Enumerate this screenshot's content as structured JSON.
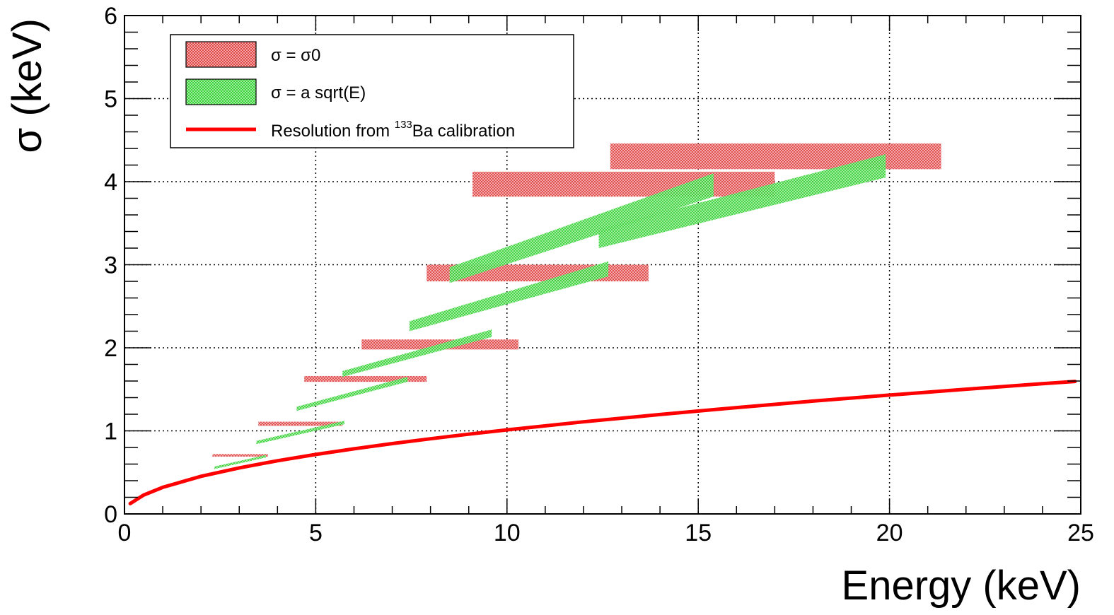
{
  "chart_data": {
    "type": "scatter",
    "xlabel": "Energy (keV)",
    "ylabel": "σ (keV)",
    "xlim": [
      0,
      25
    ],
    "ylim": [
      0,
      6
    ],
    "xticks": [
      "0",
      "5",
      "10",
      "15",
      "20",
      "25"
    ],
    "yticks": [
      "0",
      "1",
      "2",
      "3",
      "4",
      "5",
      "6"
    ],
    "grid": true,
    "legend_position": "top-left",
    "legend": [
      {
        "label": "σ = σ0",
        "color": "#e04848",
        "style": "box"
      },
      {
        "label": "σ = a sqrt(E)",
        "color": "#3ed43e",
        "style": "box"
      },
      {
        "label_prefix": "Resolution from ",
        "label_sup": "133",
        "label_suffix": "Ba calibration",
        "color": "#ff0000",
        "style": "line"
      }
    ],
    "series": [
      {
        "name": "σ = σ0",
        "color": "#e04848",
        "bands": [
          {
            "x1": 2.3,
            "x2": 3.75,
            "y1": 0.69,
            "y2": 0.72
          },
          {
            "x1": 3.5,
            "x2": 5.7,
            "y1": 1.06,
            "y2": 1.11
          },
          {
            "x1": 4.7,
            "x2": 7.9,
            "y1": 1.59,
            "y2": 1.66
          },
          {
            "x1": 6.2,
            "x2": 10.3,
            "y1": 1.98,
            "y2": 2.1
          },
          {
            "x1": 7.9,
            "x2": 13.7,
            "y1": 2.8,
            "y2": 3.0
          },
          {
            "x1": 9.1,
            "x2": 17.0,
            "y1": 3.82,
            "y2": 4.12
          },
          {
            "x1": 12.7,
            "x2": 21.35,
            "y1": 4.15,
            "y2": 4.46
          }
        ]
      },
      {
        "name": "σ = a sqrt(E)",
        "color": "#3ed43e",
        "bands": [
          {
            "x1": 2.35,
            "x2": 3.7,
            "y1_low": 0.54,
            "y1_high": 0.57,
            "y2_low": 0.68,
            "y2_high": 0.71
          },
          {
            "x1": 3.45,
            "x2": 5.75,
            "y1_low": 0.84,
            "y1_high": 0.88,
            "y2_low": 1.08,
            "y2_high": 1.12
          },
          {
            "x1": 4.5,
            "x2": 7.4,
            "y1_low": 1.24,
            "y1_high": 1.29,
            "y2_low": 1.59,
            "y2_high": 1.65
          },
          {
            "x1": 5.7,
            "x2": 9.6,
            "y1_low": 1.65,
            "y1_high": 1.72,
            "y2_low": 2.13,
            "y2_high": 2.22
          },
          {
            "x1": 7.45,
            "x2": 12.65,
            "y1_low": 2.2,
            "y1_high": 2.32,
            "y2_low": 2.86,
            "y2_high": 3.04
          },
          {
            "x1": 8.5,
            "x2": 15.4,
            "y1_low": 2.78,
            "y1_high": 2.97,
            "y2_low": 3.82,
            "y2_high": 4.1
          },
          {
            "x1": 12.4,
            "x2": 19.9,
            "y1_low": 3.2,
            "y1_high": 3.43,
            "y2_low": 4.05,
            "y2_high": 4.33
          }
        ]
      },
      {
        "name": "Resolution from 133Ba calibration",
        "color": "#ff0000",
        "curve": "sigma = 0.32 * sqrt(E)",
        "x": [
          0.15,
          0.5,
          1,
          2,
          3,
          4,
          5,
          6,
          7,
          8,
          9,
          10,
          12,
          14,
          16,
          18,
          20,
          22,
          24,
          24.85
        ],
        "y": [
          0.124,
          0.226,
          0.32,
          0.453,
          0.554,
          0.64,
          0.716,
          0.784,
          0.847,
          0.905,
          0.96,
          1.012,
          1.109,
          1.197,
          1.28,
          1.358,
          1.431,
          1.501,
          1.568,
          1.595
        ]
      }
    ]
  }
}
